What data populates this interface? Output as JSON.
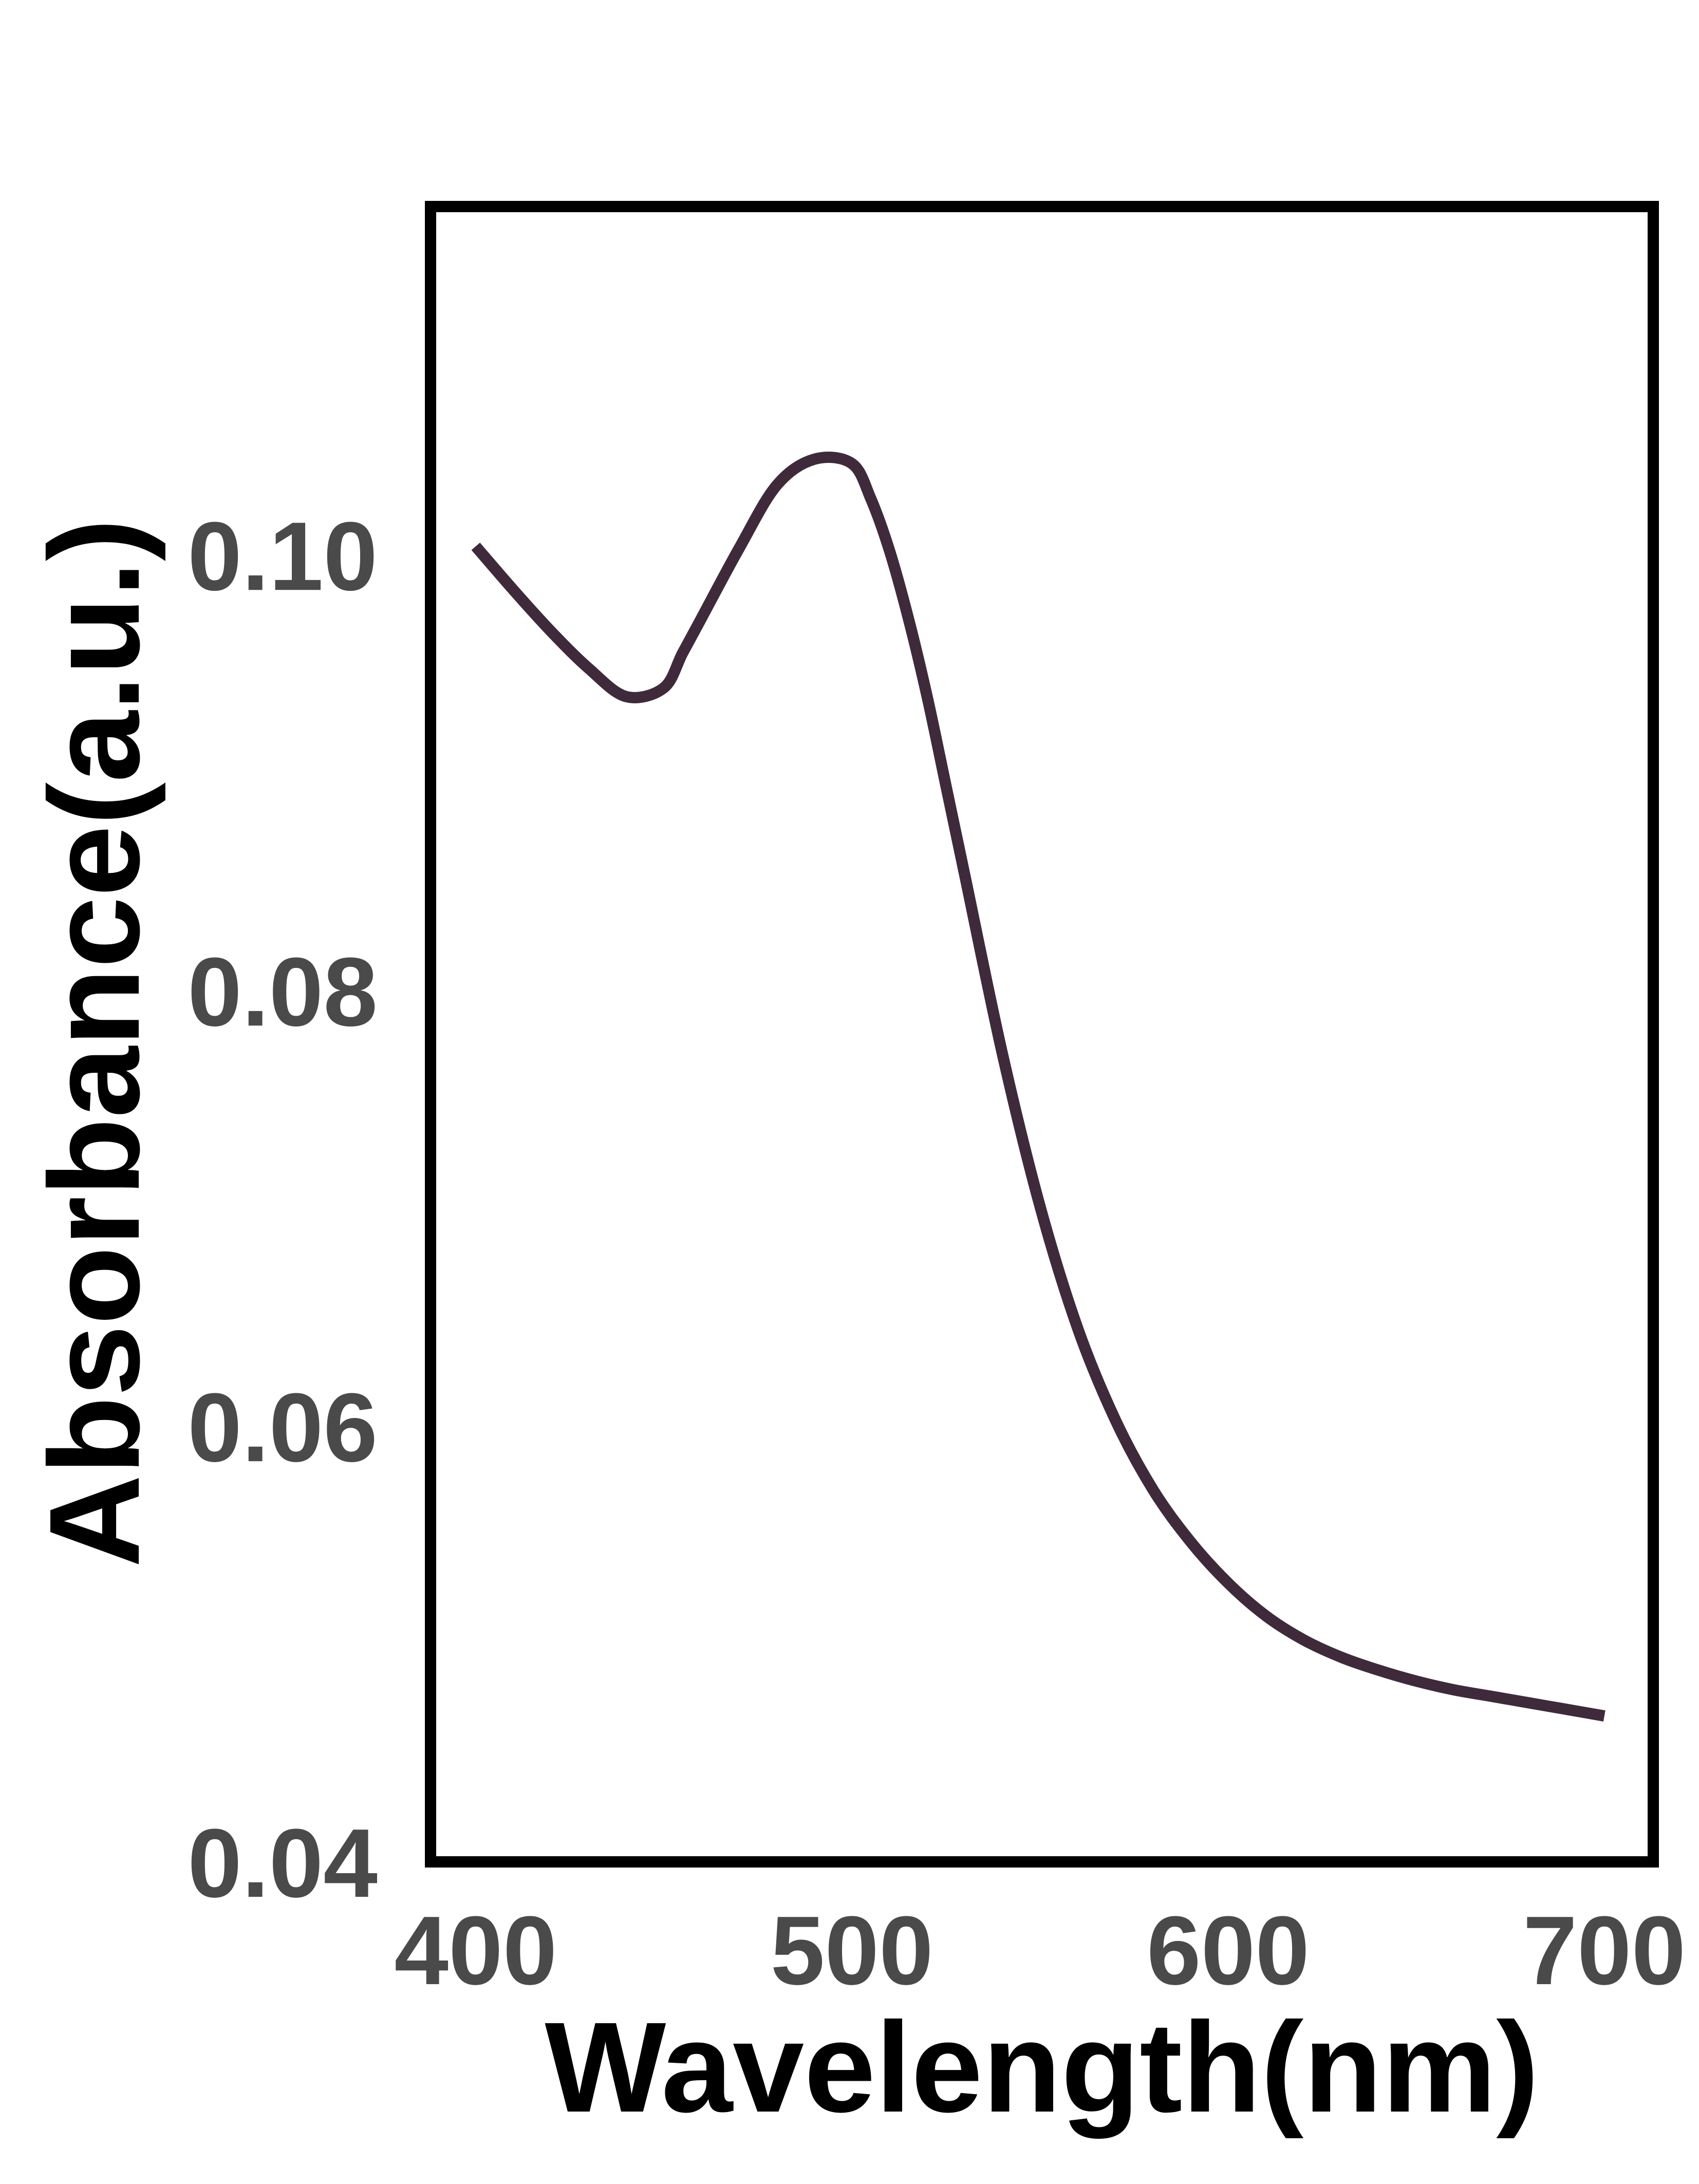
{
  "chart_data": {
    "type": "line",
    "title": "",
    "xlabel": "Wavelength(nm)",
    "ylabel": "Absorbance(a.u.)",
    "xlim": [
      388,
      713
    ],
    "ylim": [
      0.04,
      0.116
    ],
    "xticks": [
      400,
      500,
      600,
      700
    ],
    "xtick_labels": [
      "400",
      "500",
      "600",
      "700"
    ],
    "yticks": [
      0.04,
      0.06,
      0.08,
      0.1
    ],
    "ytick_labels": [
      "0.04",
      "0.06",
      "0.08",
      "0.10"
    ],
    "grid": false,
    "legend": "none",
    "series": [
      {
        "color": "#3f2a3c",
        "x": [
          400,
          410,
          420,
          430,
          440,
          450,
          455,
          460,
          470,
          480,
          490,
          500,
          505,
          510,
          515,
          520,
          525,
          530,
          540,
          550,
          560,
          570,
          580,
          590,
          600,
          610,
          620,
          630,
          640,
          650,
          660,
          670,
          680,
          690,
          700
        ],
        "y": [
          0.1004,
          0.0984,
          0.0965,
          0.0948,
          0.0935,
          0.0939,
          0.0955,
          0.0971,
          0.1003,
          0.1032,
          0.1044,
          0.1042,
          0.1026,
          0.1002,
          0.0971,
          0.0935,
          0.0894,
          0.0853,
          0.0771,
          0.0701,
          0.0645,
          0.0603,
          0.0571,
          0.0547,
          0.0528,
          0.0513,
          0.0502,
          0.0494,
          0.0488,
          0.0483,
          0.0479,
          0.0476,
          0.0473,
          0.047,
          0.0467
        ]
      }
    ]
  }
}
